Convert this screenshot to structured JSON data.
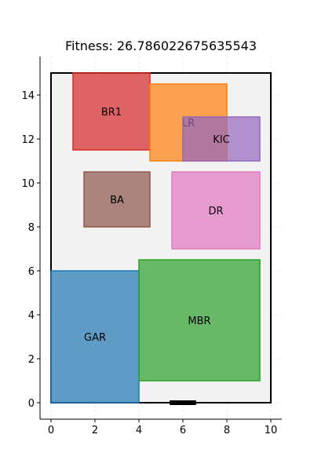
{
  "chart_data": {
    "type": "floorplan",
    "title": "Fitness: 26.786022675635543",
    "xlim": [
      -0.5,
      10.5
    ],
    "ylim": [
      -0.75,
      15.75
    ],
    "x_ticks": [
      0,
      2,
      4,
      6,
      8,
      10
    ],
    "y_ticks": [
      0,
      2,
      4,
      6,
      8,
      10,
      12,
      14
    ],
    "grid": true,
    "boundary": {
      "x": 0,
      "y": 0,
      "w": 10,
      "h": 15,
      "fill": "#f2f2f2",
      "stroke": "#000000"
    },
    "door": {
      "x1": 5.4,
      "x2": 6.6,
      "y": 0,
      "color": "#000000"
    },
    "rooms": [
      {
        "name": "GAR",
        "x": 0,
        "y": 0,
        "w": 4,
        "h": 6,
        "fill": "#1f77b4",
        "stroke": "#1f77b4"
      },
      {
        "name": "MBR",
        "x": 4,
        "y": 1,
        "w": 5.5,
        "h": 5.5,
        "fill": "#2ca02c",
        "stroke": "#2ca02c"
      },
      {
        "name": "DR",
        "x": 5.5,
        "y": 7,
        "w": 4,
        "h": 3.5,
        "fill": "#e377c2",
        "stroke": "#e377c2"
      },
      {
        "name": "BA",
        "x": 1.5,
        "y": 8,
        "w": 3,
        "h": 2.5,
        "fill": "#8c564b",
        "stroke": "#8c564b"
      },
      {
        "name": "BR1",
        "x": 1,
        "y": 11.5,
        "w": 3.5,
        "h": 3.5,
        "fill": "#d62728",
        "stroke": "#d62728"
      },
      {
        "name": "LR",
        "x": 4.5,
        "y": 11,
        "w": 3.5,
        "h": 3.5,
        "fill": "#ff7f0e",
        "stroke": "#ff7f0e"
      },
      {
        "name": "KIC",
        "x": 6,
        "y": 11,
        "w": 3.5,
        "h": 2,
        "fill": "#9467bd",
        "stroke": "#9467bd"
      }
    ]
  }
}
